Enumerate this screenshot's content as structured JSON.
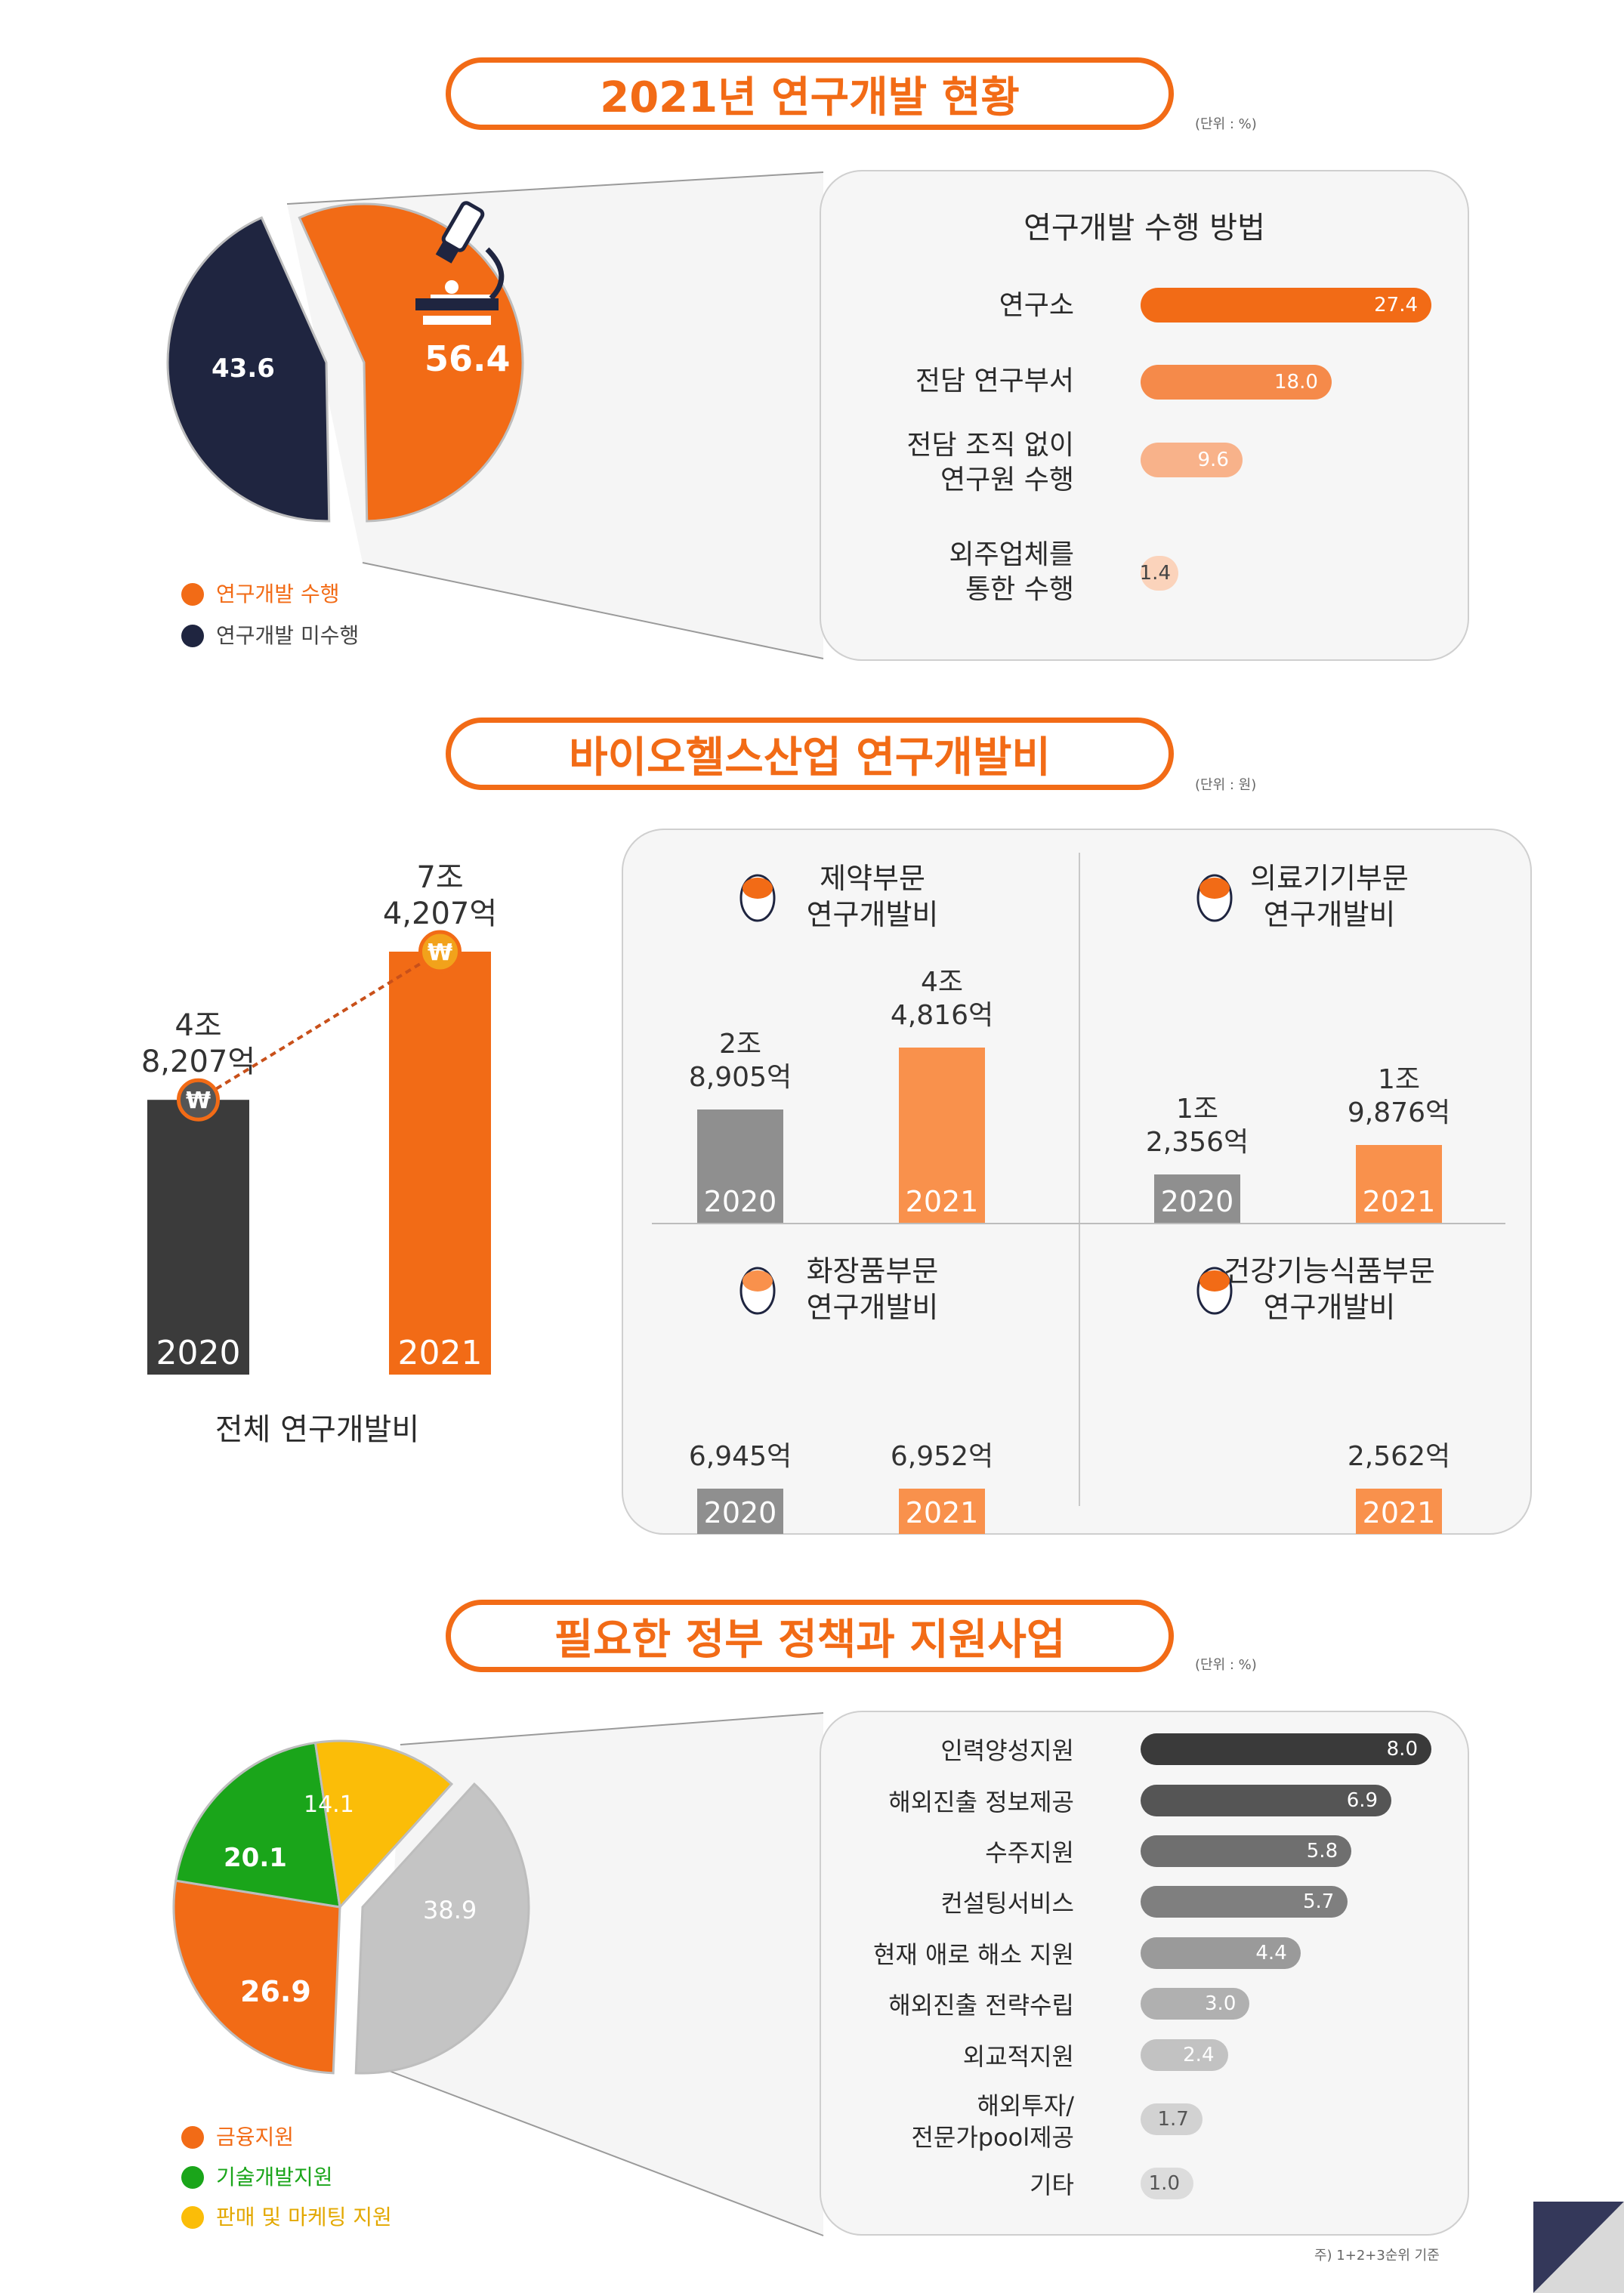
{
  "section1": {
    "title": "2021년 연구개발 현황",
    "unit": "(단위 : %)",
    "pie": {
      "performed": 56.4,
      "not_performed": 43.6
    },
    "legend": [
      "연구개발 수행",
      "연구개발 미수행"
    ],
    "colors": {
      "performed": "#f26b16",
      "not_performed": "#1f2540"
    },
    "card_title": "연구개발 수행 방법",
    "methods": [
      {
        "label": "연구소",
        "value": 27.4,
        "display": "27.4",
        "color": "#f26b16"
      },
      {
        "label": "전담 연구부서",
        "value": 18.0,
        "display": "18.0",
        "color": "#f58a4a"
      },
      {
        "label": "전담 조직 없이\n연구원 수행",
        "value": 9.6,
        "display": "9.6",
        "color": "#f8b28a"
      },
      {
        "label": "외주업체를\n통한 수행",
        "value": 1.4,
        "display": "1.4",
        "color": "#fbd3bb"
      }
    ]
  },
  "section2": {
    "title": "바이오헬스산업 연구개발비",
    "unit": "(단위 : 원)",
    "total": {
      "caption": "전체 연구개발비",
      "bars": [
        {
          "year": "2020",
          "amount": "4조\n8,207억",
          "value": 48207
        },
        {
          "year": "2021",
          "amount": "7조\n4,207억",
          "value": 74207
        }
      ],
      "won": "₩"
    },
    "panels": [
      {
        "title": "제약부문\n연구개발비",
        "bars": [
          {
            "year": "2020",
            "amount": "2조\n8,905억",
            "value": 28905
          },
          {
            "year": "2021",
            "amount": "4조\n4,816억",
            "value": 44816
          }
        ]
      },
      {
        "title": "의료기기부문\n연구개발비",
        "bars": [
          {
            "year": "2020",
            "amount": "1조\n2,356억",
            "value": 12356
          },
          {
            "year": "2021",
            "amount": "1조\n9,876억",
            "value": 19876
          }
        ]
      },
      {
        "title": "화장품부문\n연구개발비",
        "bars": [
          {
            "year": "2020",
            "amount": "6,945억",
            "value": 6945
          },
          {
            "year": "2021",
            "amount": "6,952억",
            "value": 6952
          }
        ]
      },
      {
        "title": "건강기능식품부문\n연구개발비",
        "bars": [
          {
            "year": "2021",
            "amount": "2,562억",
            "value": 2562
          }
        ]
      }
    ]
  },
  "section3": {
    "title": "필요한 정부 정책과 지원사업",
    "unit": "(단위 : %)",
    "pie": [
      {
        "value": 26.9,
        "display": "26.9",
        "color": "#f26b16"
      },
      {
        "value": 20.1,
        "display": "20.1",
        "color": "#1aa51a"
      },
      {
        "value": 14.1,
        "display": "14.1",
        "color": "#fbbd08"
      },
      {
        "value": 38.9,
        "display": "38.9",
        "color": "#c4c4c4"
      }
    ],
    "legend": [
      "금융지원",
      "기술개발지원",
      "판매 및 마케팅 지원"
    ],
    "items": [
      {
        "label": "인력양성지원",
        "value": 8.0,
        "display": "8.0",
        "color": "#3a3a3a"
      },
      {
        "label": "해외진출 정보제공",
        "value": 6.9,
        "display": "6.9",
        "color": "#555555"
      },
      {
        "label": "수주지원",
        "value": 5.8,
        "display": "5.8",
        "color": "#6f6f6f"
      },
      {
        "label": "컨설팅서비스",
        "value": 5.7,
        "display": "5.7",
        "color": "#7f7f7f"
      },
      {
        "label": "현재 애로 해소 지원",
        "value": 4.4,
        "display": "4.4",
        "color": "#9a9a9a"
      },
      {
        "label": "해외진출 전략수립",
        "value": 3.0,
        "display": "3.0",
        "color": "#b0b0b0"
      },
      {
        "label": "외교적지원",
        "value": 2.4,
        "display": "2.4",
        "color": "#c2c2c2"
      },
      {
        "label": "해외투자/\n전문가pool제공",
        "value": 1.7,
        "display": "1.7",
        "color": "#d2d2d2"
      },
      {
        "label": "기타",
        "value": 1.0,
        "display": "1.0",
        "color": "#dcdcdc"
      }
    ],
    "footnote": "주) 1+2+3순위 기준"
  },
  "chart_data": [
    {
      "type": "pie",
      "categories": [
        "연구개발 수행",
        "연구개발 미수행"
      ],
      "values": [
        56.4,
        43.6
      ]
    },
    {
      "type": "bar",
      "title": "연구개발 수행 방법",
      "categories": [
        "연구소",
        "전담 연구부서",
        "전담 조직 없이 연구원 수행",
        "외주업체를 통한 수행"
      ],
      "values": [
        27.4,
        18.0,
        9.6,
        1.4
      ]
    },
    {
      "type": "bar",
      "xlabel": "전체 연구개발비",
      "categories": [
        "2020",
        "2021"
      ],
      "values": [
        48207,
        74207
      ]
    },
    {
      "type": "bar",
      "title": "제약부문 연구개발비",
      "categories": [
        "2020",
        "2021"
      ],
      "values": [
        28905,
        44816
      ]
    },
    {
      "type": "bar",
      "title": "의료기기부문 연구개발비",
      "categories": [
        "2020",
        "2021"
      ],
      "values": [
        12356,
        19876
      ]
    },
    {
      "type": "bar",
      "title": "화장품부문 연구개발비",
      "categories": [
        "2020",
        "2021"
      ],
      "values": [
        6945,
        6952
      ]
    },
    {
      "type": "bar",
      "title": "건강기능식품부문 연구개발비",
      "categories": [
        "2021"
      ],
      "values": [
        2562
      ]
    },
    {
      "type": "pie",
      "categories": [
        "금융지원",
        "기술개발지원",
        "판매 및 마케팅 지원",
        ""
      ],
      "values": [
        26.9,
        20.1,
        14.1,
        38.9
      ]
    },
    {
      "type": "bar",
      "categories": [
        "인력양성지원",
        "해외진출 정보제공",
        "수주지원",
        "컨설팅서비스",
        "현재 애로 해소 지원",
        "해외진출 전략수립",
        "외교적지원",
        "해외투자/전문가pool제공",
        "기타"
      ],
      "values": [
        8.0,
        6.9,
        5.8,
        5.7,
        4.4,
        3.0,
        2.4,
        1.7,
        1.0
      ]
    }
  ]
}
